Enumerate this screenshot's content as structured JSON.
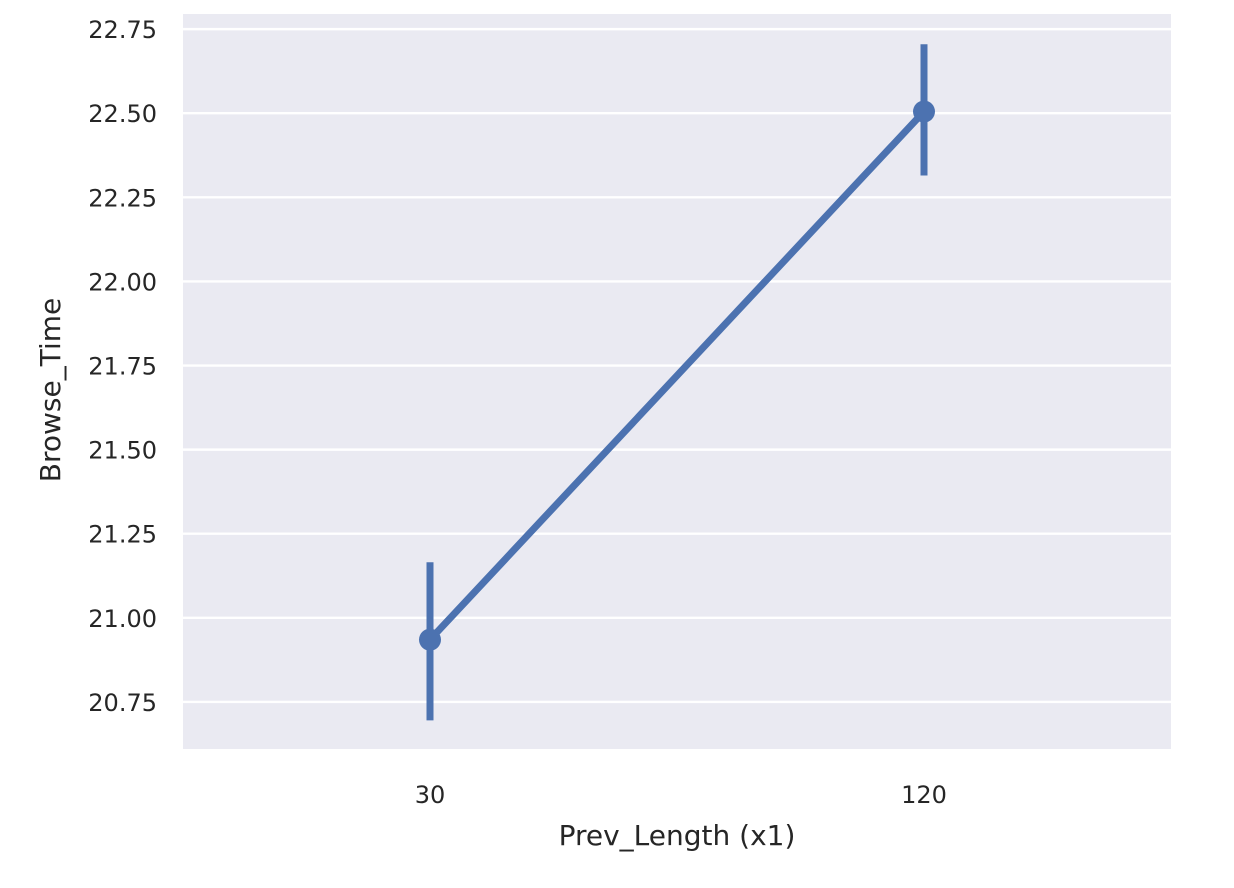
{
  "chart_data": {
    "type": "line",
    "title": "",
    "xlabel": "Prev_Length (x1)",
    "ylabel": "Browse_Time",
    "categories": [
      "30",
      "120"
    ],
    "series": [
      {
        "values": [
          20.935,
          22.505
        ],
        "ci_low": [
          20.695,
          22.315
        ],
        "ci_high": [
          21.165,
          22.705
        ],
        "color": "#4c72b0"
      }
    ],
    "ylim": [
      20.61,
      22.795
    ],
    "yticks": [
      20.75,
      21.0,
      21.25,
      21.5,
      21.75,
      22.0,
      22.25,
      22.5,
      22.75
    ],
    "ytick_labels": [
      "20.75",
      "21.00",
      "21.25",
      "21.50",
      "21.75",
      "22.00",
      "22.25",
      "22.50",
      "22.75"
    ],
    "grid": true,
    "legend": "none"
  }
}
